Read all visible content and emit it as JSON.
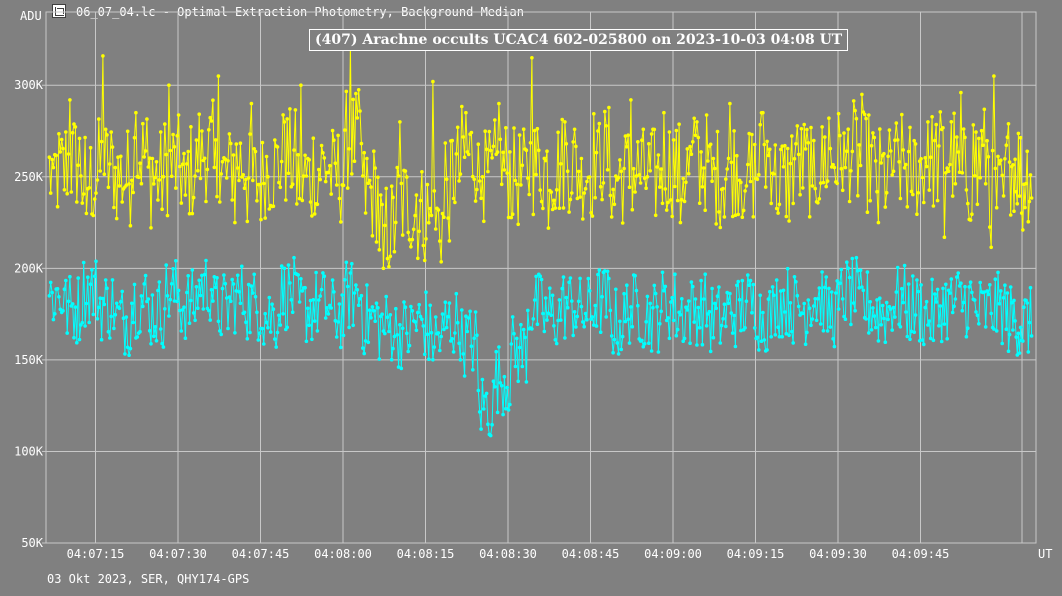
{
  "window": {
    "title": "06_07_04.lc - Optimal Extraction Photometry, Background Median",
    "icon": "lightcurve-app-icon"
  },
  "footer": {
    "text": "03 Okt 2023, SER, QHY174-GPS"
  },
  "colors": {
    "background": "#808080",
    "grid": "#c8c8c8",
    "series_star": "#ffff00",
    "series_comparison": "#00ffff"
  },
  "chart_data": {
    "type": "line",
    "title": "(407) Arachne occults UCAC4 602-025800 on 2023-10-03  04:08 UT",
    "ylabel": "ADU",
    "xlabel": "UT",
    "ylim": [
      50000,
      340000
    ],
    "xlim_seconds": [
      4,
      64
    ],
    "x_ticks": [
      {
        "t": 7,
        "label": "04:07:15"
      },
      {
        "t": 12,
        "label": "04:07:30"
      },
      {
        "t": 17,
        "label": "04:07:45"
      },
      {
        "t": 22,
        "label": "04:08:00"
      },
      {
        "t": 27,
        "label": "04:08:15"
      },
      {
        "t": 32,
        "label": "04:08:30"
      },
      {
        "t": 37,
        "label": "04:08:45"
      },
      {
        "t": 42,
        "label": "04:09:00"
      },
      {
        "t": 47,
        "label": "04:09:15"
      },
      {
        "t": 52,
        "label": "04:09:30"
      },
      {
        "t": 57,
        "label": "04:09:45"
      }
    ],
    "y_ticks": [
      {
        "value": 50000,
        "label": "50K"
      },
      {
        "value": 100000,
        "label": "100K"
      },
      {
        "value": 150000,
        "label": "150K"
      },
      {
        "value": 200000,
        "label": "200K"
      },
      {
        "value": 250000,
        "label": "250K"
      },
      {
        "value": 300000,
        "label": "300K"
      }
    ],
    "grid": true,
    "series": [
      {
        "color": "#ffff00",
        "t": [
          4.2,
          5.2,
          6.2,
          7.2,
          8.2,
          9.2,
          10.2,
          11.2,
          12.2,
          13.2,
          14.2,
          15.2,
          16.2,
          17.2,
          18.2,
          19.2,
          20.2,
          21.2,
          22.2,
          23.2,
          24.2,
          25.2,
          26.2,
          27.2,
          28.2,
          29.2,
          30.2,
          31.2,
          32.2,
          33.2,
          34.2,
          35.2,
          36.2,
          37.2,
          38.2,
          39.2,
          40.2,
          41.2,
          42.2,
          43.2,
          44.2,
          45.2,
          46.2,
          47.2,
          48.2,
          49.2,
          50.2,
          51.2,
          52.2,
          53.2,
          54.2,
          55.2,
          56.2,
          57.2,
          58.2,
          59.2,
          60.2,
          61.2,
          62.2,
          63.0
        ],
        "values": [
          252000,
          258000,
          248000,
          255000,
          250000,
          262000,
          249000,
          256000,
          253000,
          264000,
          250000,
          258000,
          247000,
          255000,
          260000,
          249000,
          256000,
          251000,
          270000,
          241000,
          222000,
          235000,
          230000,
          225000,
          253000,
          262000,
          248000,
          254000,
          249000,
          256000,
          255000,
          258000,
          254000,
          262000,
          251000,
          252000,
          250000,
          256000,
          253000,
          258000,
          250000,
          256000,
          252000,
          262000,
          248000,
          256000,
          255000,
          260000,
          264000,
          258000,
          250000,
          257000,
          254000,
          259000,
          261000,
          250000,
          262000,
          238000,
          257000,
          252000
        ],
        "values_samples": [
          255000,
          292000,
          230000,
          316000,
          245000,
          285000,
          260000,
          300000,
          240000,
          275000,
          305000,
          225000,
          290000,
          250000,
          280000,
          300000,
          235000,
          270000,
          322000,
          260000,
          200000,
          280000,
          240000,
          302000,
          215000,
          285000,
          250000,
          290000,
          248000,
          315000,
          222000,
          280000,
          260000,
          275000,
          235000,
          292000,
          250000,
          285000,
          225000,
          280000,
          260000,
          290000,
          245000,
          285000,
          235000,
          268000,
          245000,
          282000,
          255000,
          295000,
          225000,
          270000,
          242000,
          280000,
          217000,
          296000,
          235000,
          305000,
          258000,
          221000
        ]
      },
      {
        "color": "#00ffff",
        "t": [
          4.2,
          5.2,
          6.2,
          7.2,
          8.2,
          9.2,
          10.2,
          11.2,
          12.2,
          13.2,
          14.2,
          15.2,
          16.2,
          17.2,
          18.2,
          19.2,
          20.2,
          21.2,
          22.2,
          23.2,
          24.2,
          25.2,
          26.2,
          27.2,
          28.2,
          29.2,
          30.2,
          31.2,
          32.2,
          33.2,
          34.2,
          35.2,
          36.2,
          37.2,
          38.2,
          39.2,
          40.2,
          41.2,
          42.2,
          43.2,
          44.2,
          45.2,
          46.2,
          47.2,
          48.2,
          49.2,
          50.2,
          51.2,
          52.2,
          53.2,
          54.2,
          55.2,
          56.2,
          57.2,
          58.2,
          59.2,
          60.2,
          61.2,
          62.2,
          63.0
        ],
        "values": [
          185000,
          178000,
          188000,
          180000,
          172000,
          182000,
          176000,
          186000,
          180000,
          190000,
          178000,
          184000,
          180000,
          174000,
          186000,
          178000,
          180000,
          175000,
          185000,
          172000,
          168000,
          165000,
          170000,
          162000,
          170000,
          160000,
          125000,
          140000,
          155000,
          178000,
          174000,
          180000,
          176000,
          182000,
          170000,
          178000,
          174000,
          180000,
          176000,
          178000,
          172000,
          176000,
          180000,
          174000,
          182000,
          178000,
          184000,
          176000,
          186000,
          180000,
          176000,
          182000,
          178000,
          174000,
          180000,
          182000,
          176000,
          178000,
          172000,
          170000
        ]
      }
    ]
  }
}
